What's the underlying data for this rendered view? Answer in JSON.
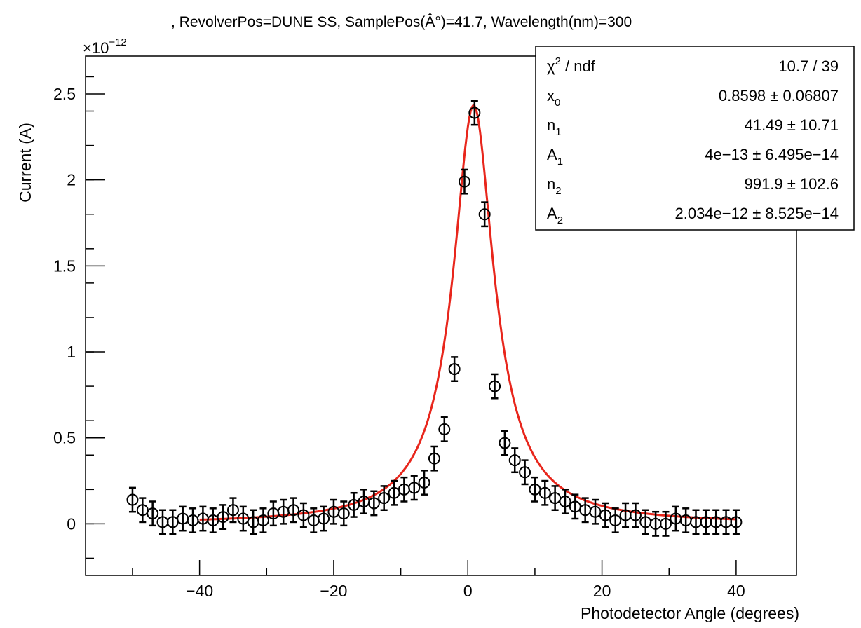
{
  "title": ", RevolverPos=DUNE SS, SamplePos(Â°)=41.7, Wavelength(nm)=300",
  "axis_multiplier": {
    "base": "×10",
    "exponent": "−12"
  },
  "stats_box": {
    "rows": [
      {
        "label": "χ",
        "label_sup": "2",
        "label_rest": " / ndf",
        "value": "10.7 / 39"
      },
      {
        "label": "x",
        "label_sub": "0",
        "value": "0.8598 ± 0.06807"
      },
      {
        "label": "n",
        "label_sub": "1",
        "value": "41.49 ± 10.71"
      },
      {
        "label": "A",
        "label_sub": "1",
        "value": "4e−13 ± 6.495e−14"
      },
      {
        "label": "n",
        "label_sub": "2",
        "value": "991.9 ± 102.6"
      },
      {
        "label": "A",
        "label_sub": "2",
        "value": "2.034e−12 ± 8.525e−14"
      }
    ]
  },
  "chart_data": {
    "type": "scatter",
    "title": ", RevolverPos=DUNE SS, SamplePos(Â°)=41.7, Wavelength(nm)=300",
    "xlabel": "Photodetector Angle (degrees)",
    "ylabel": "Current (A)",
    "y_unit_scale": 1e-12,
    "xlim": [
      -57,
      49
    ],
    "ylim": [
      -0.3,
      2.72
    ],
    "x_ticks": [
      -40,
      -20,
      0,
      20,
      40
    ],
    "x_tick_labels": [
      "−40",
      "−20",
      "0",
      "20",
      "40"
    ],
    "y_ticks": [
      0,
      0.5,
      1,
      1.5,
      2,
      2.5
    ],
    "y_tick_labels": [
      "0",
      "0.5",
      "1",
      "1.5",
      "2",
      "2.5"
    ],
    "grid": false,
    "series": [
      {
        "name": "data",
        "marker": "open-circle",
        "color": "#000000",
        "x": [
          -50,
          -48.5,
          -47,
          -45.5,
          -44,
          -42.5,
          -41,
          -39.5,
          -38,
          -36.5,
          -35,
          -33.5,
          -32,
          -30.5,
          -29,
          -27.5,
          -26,
          -24.5,
          -23,
          -21.5,
          -20,
          -18.5,
          -17,
          -15.5,
          -14,
          -12.5,
          -11,
          -9.5,
          -8,
          -6.5,
          -5,
          -3.5,
          -2,
          -0.5,
          1,
          2.5,
          4,
          5.5,
          7,
          8.5,
          10,
          11.5,
          13,
          14.5,
          16,
          17.5,
          19,
          20.5,
          22,
          23.5,
          25,
          26.5,
          28,
          29.5,
          31,
          32.5,
          34,
          35.5,
          37,
          38.5,
          40
        ],
        "y": [
          0.14,
          0.08,
          0.06,
          0.01,
          0.01,
          0.03,
          0.02,
          0.03,
          0.02,
          0.04,
          0.08,
          0.03,
          0.01,
          0.02,
          0.06,
          0.07,
          0.08,
          0.05,
          0.02,
          0.03,
          0.07,
          0.06,
          0.11,
          0.13,
          0.12,
          0.15,
          0.18,
          0.2,
          0.21,
          0.24,
          0.38,
          0.55,
          0.9,
          1.99,
          2.39,
          1.8,
          0.8,
          0.47,
          0.37,
          0.3,
          0.2,
          0.18,
          0.15,
          0.13,
          0.1,
          0.08,
          0.07,
          0.05,
          0.02,
          0.05,
          0.05,
          0.01,
          0.0,
          0.0,
          0.03,
          0.02,
          0.01,
          0.01,
          0.01,
          0.01,
          0.01
        ],
        "yerr": [
          0.07,
          0.07,
          0.07,
          0.07,
          0.07,
          0.07,
          0.07,
          0.07,
          0.07,
          0.07,
          0.07,
          0.07,
          0.07,
          0.07,
          0.07,
          0.07,
          0.07,
          0.07,
          0.07,
          0.07,
          0.07,
          0.07,
          0.07,
          0.07,
          0.07,
          0.07,
          0.07,
          0.07,
          0.07,
          0.07,
          0.07,
          0.07,
          0.07,
          0.07,
          0.07,
          0.07,
          0.07,
          0.07,
          0.07,
          0.07,
          0.07,
          0.07,
          0.07,
          0.07,
          0.07,
          0.07,
          0.07,
          0.07,
          0.07,
          0.07,
          0.07,
          0.07,
          0.07,
          0.07,
          0.07,
          0.07,
          0.07,
          0.07,
          0.07,
          0.07,
          0.07
        ]
      },
      {
        "name": "fit",
        "type": "line",
        "color": "#e8261c",
        "model": "Lorentzian-like peak",
        "params": {
          "x0": 0.8598,
          "n1": 41.49,
          "A1": 0.4,
          "n2": 991.9,
          "A2": 2.034
        },
        "x_range": [
          -40,
          40
        ]
      }
    ]
  }
}
